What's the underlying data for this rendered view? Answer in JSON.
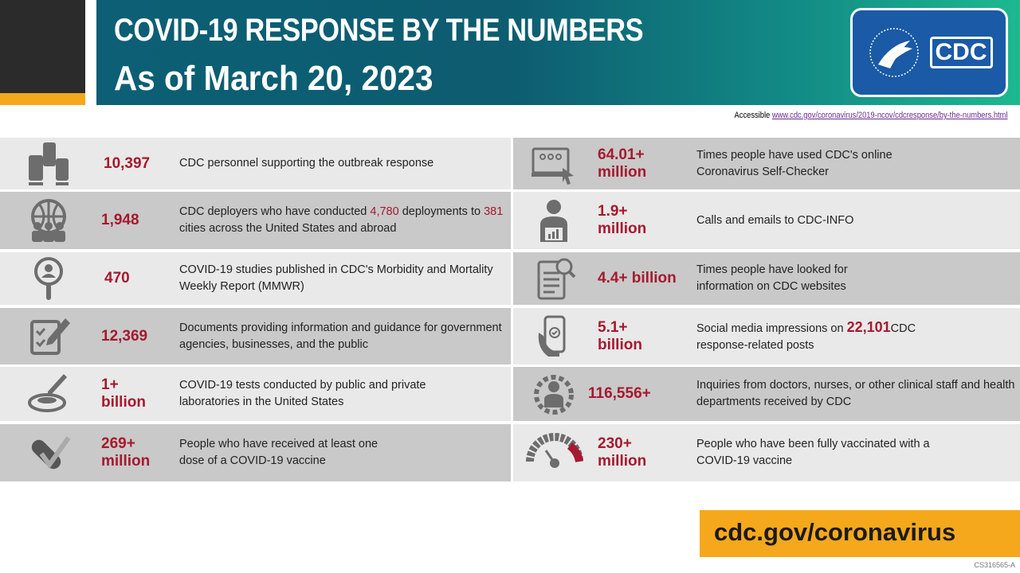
{
  "header": {
    "title": "COVID-19 RESPONSE BY THE NUMBERS",
    "subtitle": "As of March 20, 2023",
    "logo_text": "CDC"
  },
  "accessible": {
    "label": "Accessible",
    "url": "www.cdc.gov/coronavirus/2019-ncov/cdcresponse/by-the-numbers.html"
  },
  "left": [
    {
      "icon": "hands-icon",
      "value": "10,397",
      "desc": "CDC personnel supporting the outbreak response"
    },
    {
      "icon": "globe-people-icon",
      "value": "1,948",
      "desc_a": "CDC deployers who have conducted ",
      "hl1": "4,780",
      "desc_b": " deployments to ",
      "hl2": "381",
      "desc_c": "  cities across the United States and abroad"
    },
    {
      "icon": "magnifier-person-icon",
      "value": "470",
      "desc": "COVID-19 studies published in CDC's Morbidity and Mortality Weekly Report (MMWR)"
    },
    {
      "icon": "document-pen-icon",
      "value": "12,369",
      "desc": "Documents providing information and guidance for government agencies, businesses, and the public"
    },
    {
      "icon": "petri-dish-icon",
      "value": "1+ billion",
      "desc": "COVID-19 tests conducted by public and private laboratories in the United States"
    },
    {
      "icon": "bandage-check-icon",
      "value": "269+ million",
      "desc": "People who have received at least one dose of a COVID-19 vaccine"
    }
  ],
  "right": [
    {
      "icon": "browser-cursor-icon",
      "value": "64.01+ million",
      "desc": "Times people have used CDC's online Coronavirus Self-Checker"
    },
    {
      "icon": "person-laptop-icon",
      "value": "1.9+ million",
      "desc": "Calls and emails to CDC-INFO"
    },
    {
      "icon": "clipboard-search-icon",
      "value": "4.4+ billion",
      "desc": "Times people have looked for information  on CDC websites"
    },
    {
      "icon": "phone-hand-icon",
      "value": "5.1+ billion",
      "desc_a": "Social media impressions on ",
      "hl1": "22,101",
      "desc_b": "CDC response-related posts"
    },
    {
      "icon": "person-gear-icon",
      "value": "116,556+",
      "desc": "Inquiries from doctors, nurses, or other clinical staff and health departments received by CDC"
    },
    {
      "icon": "gauge-icon",
      "value": "230+ million",
      "desc": "People who have been fully vaccinated with a COVID-19  vaccine"
    }
  ],
  "footer": {
    "url": "cdc.gov/coronavirus",
    "code": "CS316565-A"
  }
}
